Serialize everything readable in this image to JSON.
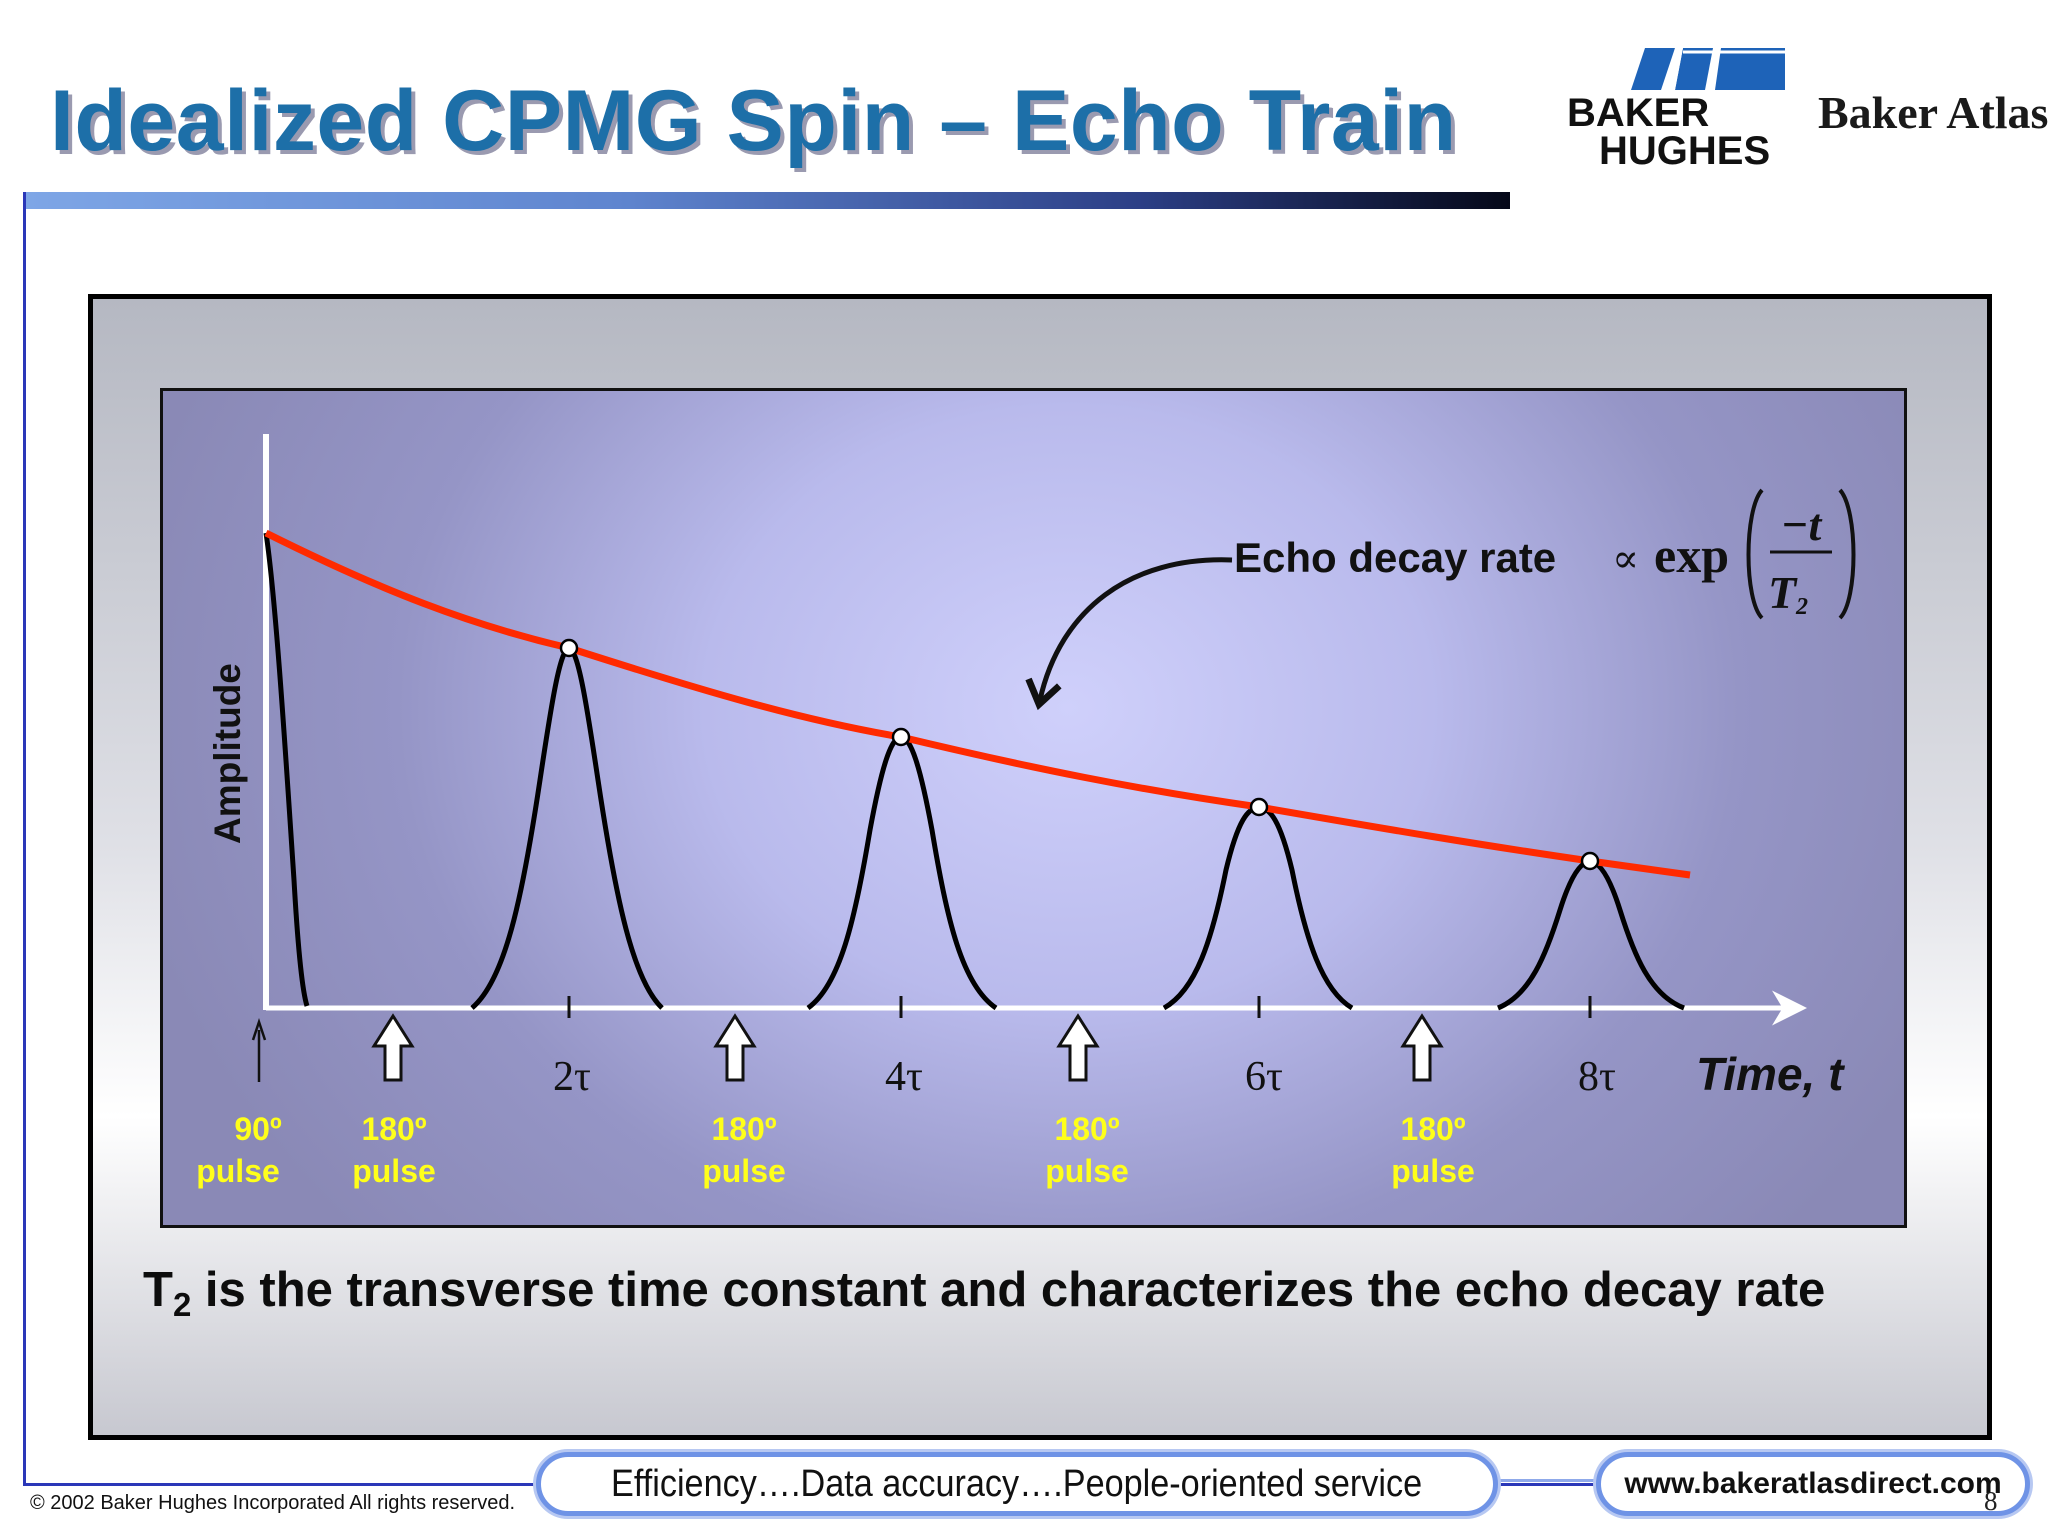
{
  "slide": {
    "title": "Idealized CPMG Spin – Echo Train",
    "brand_logo_text": [
      "BAKER",
      "HUGHES"
    ],
    "brand_secondary": "Baker Atlas",
    "caption_prefix": "T",
    "caption_subscript": "2",
    "caption_rest": " is the transverse time constant and characterizes the echo decay rate",
    "tagline": "Efficiency….Data accuracy….People-oriented service",
    "url": "www.bakeratlasdirect.com",
    "page_number": "8",
    "copyright": "© 2002 Baker Hughes Incorporated All rights reserved."
  },
  "diagram": {
    "y_axis_label": "Amplitude",
    "x_axis_label": "Time, t",
    "ticks": [
      "2τ",
      "4τ",
      "6τ",
      "8τ"
    ],
    "pulses": [
      {
        "line1": "90º",
        "line2": "pulse",
        "kind": "thin-arrow"
      },
      {
        "line1": "180º",
        "line2": "pulse",
        "kind": "hollow-arrow"
      },
      {
        "line1": "180º",
        "line2": "pulse",
        "kind": "hollow-arrow"
      },
      {
        "line1": "180º",
        "line2": "pulse",
        "kind": "hollow-arrow"
      },
      {
        "line1": "180º",
        "line2": "pulse",
        "kind": "hollow-arrow"
      }
    ],
    "annotation": {
      "text": "Echo decay rate",
      "proportional_symbol": "∝",
      "function": "exp",
      "numerator": "−t",
      "denominator_base": "T",
      "denominator_subscript": "2"
    },
    "colors": {
      "decay_curve": "#ff2a00",
      "echo_curve": "#000000",
      "pulse_label": "#ffff1a",
      "axis": "#ffffff"
    }
  }
}
